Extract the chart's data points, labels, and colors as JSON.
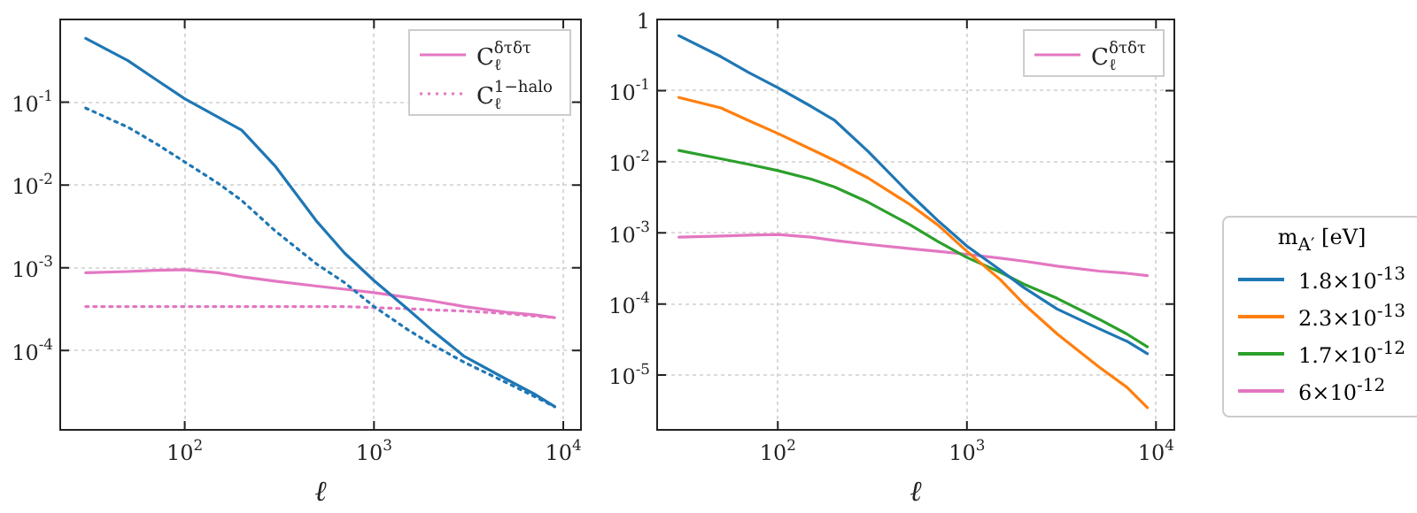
{
  "chart_data": [
    {
      "type": "line",
      "xlabel": "ℓ",
      "log": "xy",
      "grid": true,
      "legend": "top right",
      "marker": "none",
      "x": [
        30,
        50,
        70,
        100,
        150,
        200,
        300,
        500,
        700,
        1000,
        1500,
        2000,
        3000,
        5000,
        7000,
        9000
      ],
      "xlim": [
        22,
        12400
      ],
      "xticks": [
        {
          "value": 100,
          "label": "10$^{2}$"
        },
        {
          "value": 1000,
          "label": "10$^{3}$"
        },
        {
          "value": 10000,
          "label": "10$^{4}$"
        }
      ],
      "ylim": [
        1.1e-05,
        1
      ],
      "yticks": [
        {
          "value": 0.0001,
          "label": "10$^{-4}$"
        },
        {
          "value": 0.001,
          "label": "10$^{-3}$"
        },
        {
          "value": 0.01,
          "label": "10$^{-2}$"
        },
        {
          "value": 0.1,
          "label": "10$^{-1}$"
        }
      ],
      "series": [
        {
          "color": "#1f77b4",
          "line_style": "solid",
          "values": [
            0.59,
            0.32,
            0.19,
            0.11,
            0.066,
            0.046,
            0.017,
            0.0036,
            0.0015,
            0.0007,
            0.00032,
            0.00018,
            8.5e-05,
            4.5e-05,
            3e-05,
            2.1e-05
          ]
        },
        {
          "color": "#1f77b4",
          "line_style": "dotted",
          "values": [
            0.085,
            0.05,
            0.032,
            0.019,
            0.0105,
            0.0065,
            0.0028,
            0.0011,
            0.00066,
            0.00034,
            0.00018,
            0.00012,
            7.2e-05,
            4.1e-05,
            2.8e-05,
            2.1e-05
          ]
        },
        {
          "name": "C$_{ℓ}$$^{δτδτ}$",
          "color": "#e377c2",
          "line_style": "solid",
          "values": [
            0.00087,
            0.0009,
            0.00093,
            0.00095,
            0.00087,
            0.00078,
            0.00069,
            0.0006,
            0.00055,
            0.0005,
            0.00044,
            0.0004,
            0.00034,
            0.00029,
            0.00027,
            0.00025
          ]
        },
        {
          "name": "C$_{ℓ}$$^{1−halo}$",
          "color": "#e377c2",
          "line_style": "dotted",
          "values": [
            0.00034,
            0.00034,
            0.00034,
            0.00034,
            0.00034,
            0.00034,
            0.00034,
            0.00034,
            0.00034,
            0.00033,
            0.00032,
            0.00031,
            0.0003,
            0.00028,
            0.00026,
            0.00025
          ]
        }
      ]
    },
    {
      "type": "line",
      "xlabel": "ℓ",
      "log": "xy",
      "grid": true,
      "legend": "right",
      "legend_title": "m$_{A′}$ [eV]",
      "marker": "none",
      "x": [
        30,
        50,
        70,
        100,
        150,
        200,
        300,
        500,
        700,
        1000,
        1500,
        2000,
        3000,
        5000,
        7000,
        9000
      ],
      "xlim": [
        23,
        12500
      ],
      "xticks": [
        {
          "value": 100,
          "label": "10$^{2}$"
        },
        {
          "value": 1000,
          "label": "10$^{3}$"
        },
        {
          "value": 10000,
          "label": "10$^{4}$"
        }
      ],
      "ylim": [
        1.7e-06,
        1
      ],
      "yticks": [
        {
          "value": 1e-05,
          "label": "10$^{-5}$"
        },
        {
          "value": 0.0001,
          "label": "10$^{-4}$"
        },
        {
          "value": 0.001,
          "label": "10$^{-3}$"
        },
        {
          "value": 0.01,
          "label": "10$^{-2}$"
        },
        {
          "value": 0.1,
          "label": "10$^{-1}$"
        },
        1
      ],
      "series": [
        {
          "name": "1.8×10$^{-13}$",
          "color": "#1f77b4",
          "values": [
            0.59,
            0.3,
            0.18,
            0.11,
            0.06,
            0.038,
            0.014,
            0.0035,
            0.0015,
            0.00065,
            0.0003,
            0.00017,
            8.5e-05,
            4.5e-05,
            3e-05,
            2e-05
          ]
        },
        {
          "name": "2.3×10$^{-13}$",
          "color": "#ff7f0e",
          "values": [
            0.08,
            0.057,
            0.038,
            0.025,
            0.015,
            0.0104,
            0.0059,
            0.0025,
            0.0013,
            0.00055,
            0.00022,
            0.0001,
            3.8e-05,
            1.3e-05,
            6.8e-06,
            3.5e-06
          ]
        },
        {
          "name": "1.7×10$^{-12}$",
          "color": "#2ca02c",
          "values": [
            0.0144,
            0.011,
            0.0092,
            0.0075,
            0.0057,
            0.0044,
            0.0027,
            0.0013,
            0.00076,
            0.00045,
            0.00028,
            0.00019,
            0.00012,
            6.1e-05,
            3.8e-05,
            2.5e-05
          ]
        },
        {
          "name": "6×10$^{-12}$",
          "color": "#e377c2",
          "values": [
            null,
            null,
            null,
            null,
            null,
            null,
            null,
            null,
            null,
            null,
            null,
            null,
            null,
            null,
            null,
            null
          ]
        },
        {
          "name": "C$_{ℓ}$$^{δτδτ}$",
          "type": "line",
          "color": "#e377c2",
          "values": [
            0.00087,
            0.0009,
            0.00093,
            0.00095,
            0.00087,
            0.00078,
            0.00069,
            0.0006,
            0.00055,
            0.0005,
            0.00044,
            0.0004,
            0.00034,
            0.00029,
            0.00027,
            0.00025
          ]
        }
      ]
    }
  ]
}
